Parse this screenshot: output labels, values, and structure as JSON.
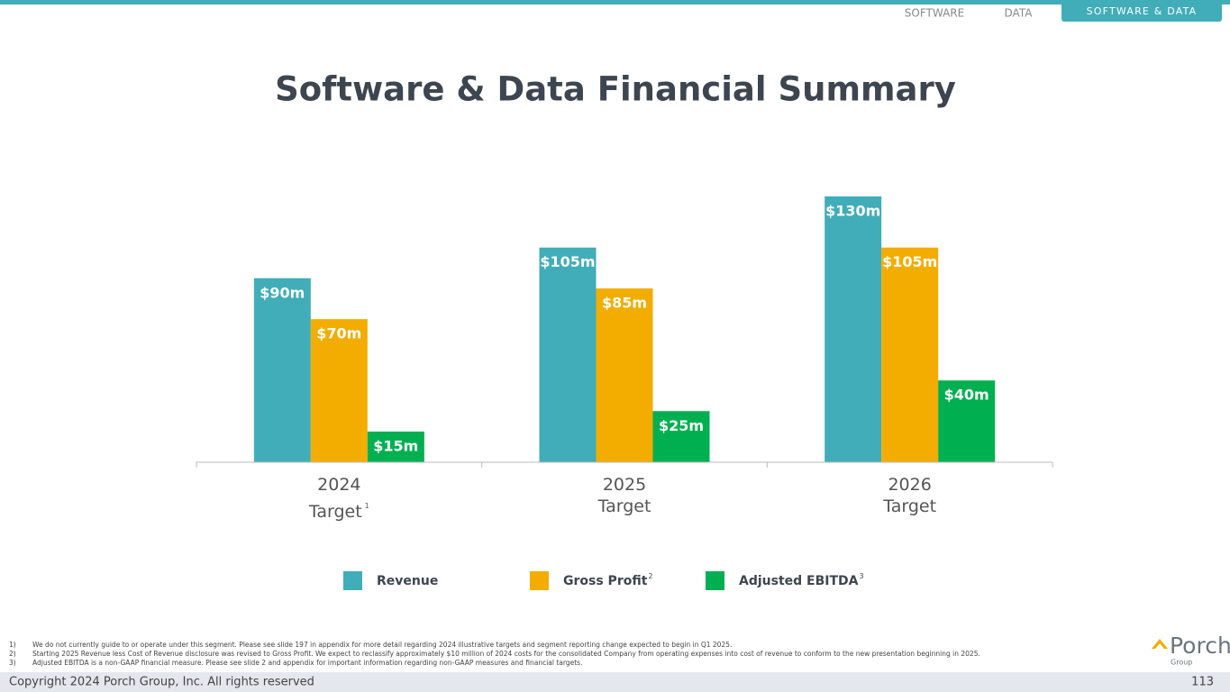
{
  "nav": {
    "tabs": [
      "SOFTWARE",
      "DATA"
    ],
    "active": "SOFTWARE & DATA"
  },
  "chart_data": {
    "type": "bar",
    "title": "Software & Data Financial Summary",
    "categories": [
      "2024\nTarget",
      "2025\nTarget",
      "2026\nTarget"
    ],
    "category_notes": [
      "1",
      null,
      null
    ],
    "series": [
      {
        "name": "Revenue",
        "note": null,
        "color": "#41adb8",
        "values": [
          90,
          105,
          130
        ],
        "value_labels": [
          "$90m",
          "$105m",
          "$130m"
        ]
      },
      {
        "name": "Gross Profit",
        "note": "2",
        "color": "#f2ad00",
        "values": [
          70,
          85,
          105
        ],
        "value_labels": [
          "$70m",
          "$85m",
          "$105m"
        ]
      },
      {
        "name": "Adjusted EBITDA",
        "note": "3",
        "color": "#00b050",
        "values": [
          15,
          25,
          40
        ],
        "value_labels": [
          "$15m",
          "$25m",
          "$40m"
        ]
      }
    ]
  },
  "footnotes": [
    {
      "marker": "1)",
      "text": "We do not currently guide to or operate under this segment. Please see slide 197 in appendix for more detail regarding 2024 illustrative targets and segment reporting change expected to begin in Q1 2025."
    },
    {
      "marker": "2)",
      "text": "Starting 2025 Revenue less Cost of Revenue disclosure was revised to Gross Profit. We expect to reclassify approximately $10 million of 2024 costs for the consolidated Company from operating expenses into cost of revenue to conform to the new presentation beginning in 2025."
    },
    {
      "marker": "3)",
      "text": "Adjusted EBITDA is a non-GAAP financial measure. Please see slide 2 and appendix for important information regarding non-GAAP measures and financial targets."
    }
  ],
  "logo": {
    "name": "Porch",
    "sub": "Group"
  },
  "footer": {
    "copyright": "Copyright 2024 Porch Group, Inc. All rights reserved",
    "page": "113"
  }
}
